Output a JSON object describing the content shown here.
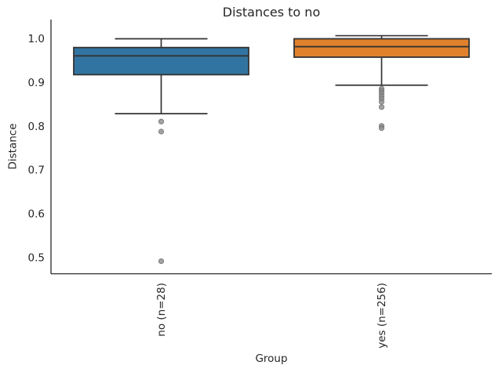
{
  "chart_data": {
    "type": "boxplot",
    "title": "Distances to no",
    "xlabel": "Group",
    "ylabel": "Distance",
    "categories": [
      "no (n=28)",
      "yes (n=256)"
    ],
    "y_ticks": [
      1.0,
      0.9,
      0.8,
      0.7,
      0.6,
      0.5
    ],
    "ylim": [
      0.46,
      1.04
    ],
    "grid": false,
    "legend": "none",
    "series": [
      {
        "name": "no (n=28)",
        "box_fill": "#3274a1",
        "whisker_high": 1.0,
        "q3": 0.98,
        "median": 0.961,
        "q1": 0.918,
        "whisker_low": 0.829,
        "outliers": [
          0.811,
          0.788,
          0.492
        ]
      },
      {
        "name": "yes (n=256)",
        "box_fill": "#e1812c",
        "whisker_high": 1.007,
        "q3": 1.0,
        "median": 0.982,
        "q1": 0.958,
        "whisker_low": 0.894,
        "outliers": [
          0.886,
          0.881,
          0.876,
          0.869,
          0.863,
          0.856,
          0.844,
          0.801,
          0.796
        ]
      }
    ],
    "colors": {
      "box_edge": "#333333",
      "spine": "#262626",
      "flier_fill": "#8c8c8c",
      "flier_edge": "#6e6e6e",
      "text": "#262626",
      "background": "#ffffff"
    }
  }
}
